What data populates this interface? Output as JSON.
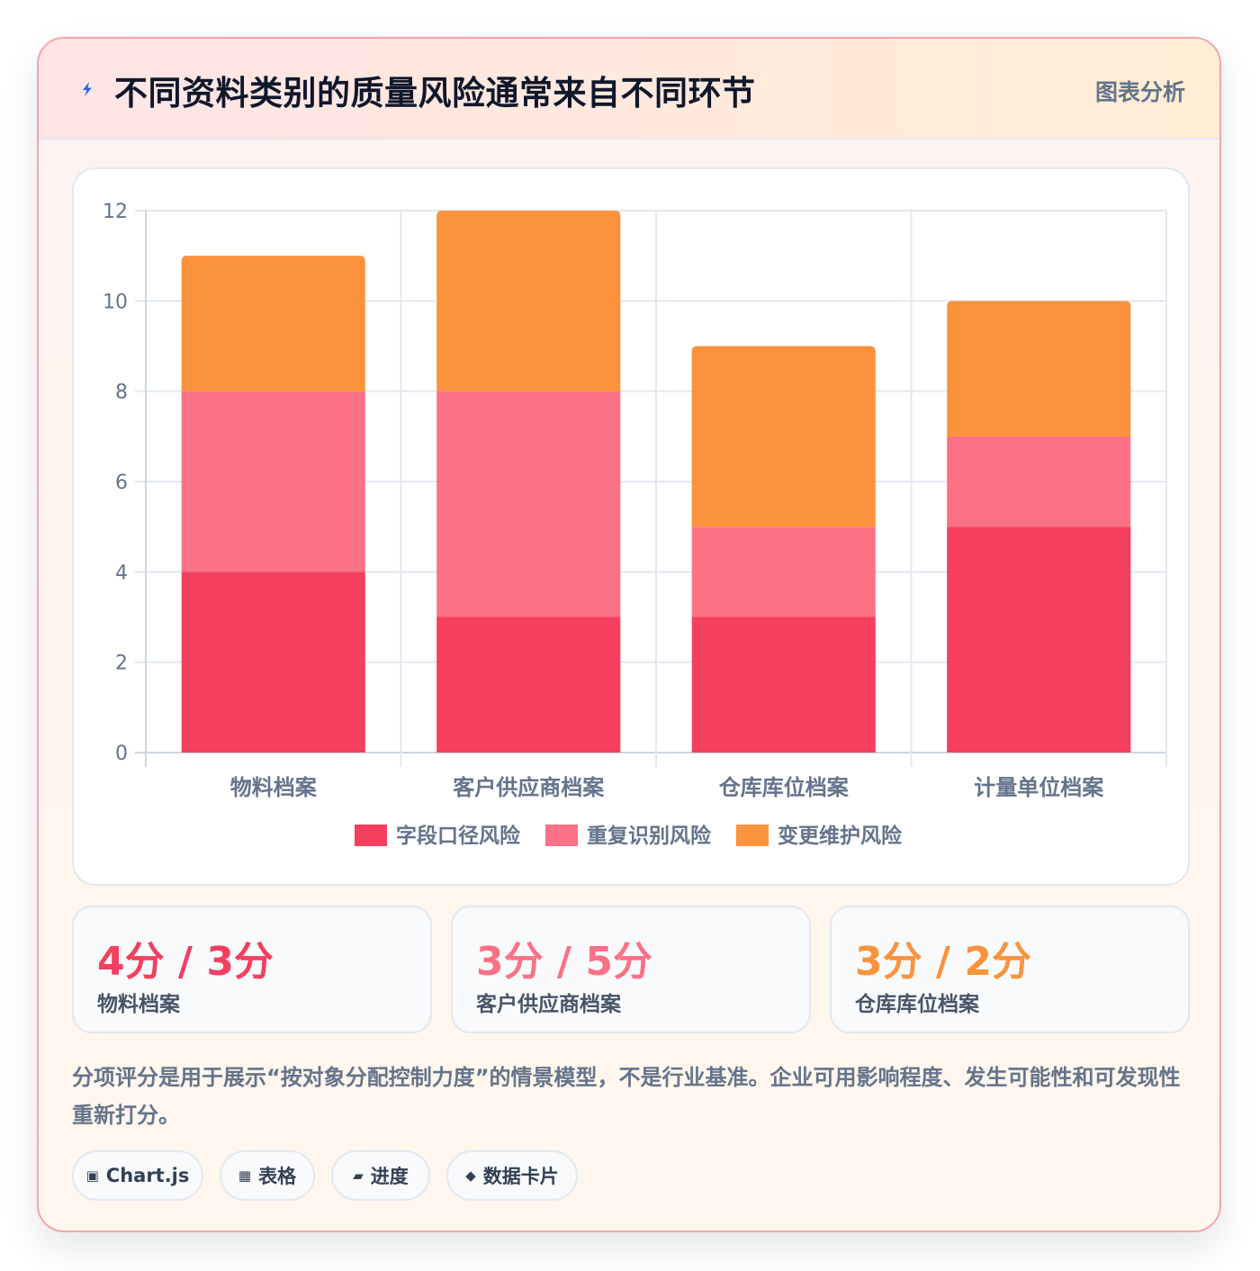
{
  "header": {
    "icon": "lightning-icon",
    "title": "不同资料类别的质量风险通常来自不同环节",
    "tag": "图表分析"
  },
  "colors": {
    "series1": "#f43f5e",
    "series2": "#fb7185",
    "series3": "#fb923c",
    "accent_blue": "#2563eb"
  },
  "chart_data": {
    "type": "bar",
    "stacked": true,
    "title": "",
    "xlabel": "",
    "ylabel": "",
    "categories": [
      "物料档案",
      "客户供应商档案",
      "仓库库位档案",
      "计量单位档案"
    ],
    "series": [
      {
        "name": "字段口径风险",
        "values": [
          4,
          3,
          3,
          5
        ],
        "color": "#f43f5e"
      },
      {
        "name": "重复识别风险",
        "values": [
          4,
          5,
          2,
          2
        ],
        "color": "#fb7185"
      },
      {
        "name": "变更维护风险",
        "values": [
          3,
          4,
          4,
          3
        ],
        "color": "#fb923c"
      }
    ],
    "ylim": [
      0,
      12
    ],
    "yticks": [
      0,
      2,
      4,
      6,
      8,
      10,
      12
    ],
    "grid": true,
    "legend": "bottom"
  },
  "stats": [
    {
      "value": "4分 / 3分",
      "label": "物料档案",
      "color": "#f43f5e"
    },
    {
      "value": "3分 / 5分",
      "label": "客户供应商档案",
      "color": "#fb7185"
    },
    {
      "value": "3分 / 2分",
      "label": "仓库库位档案",
      "color": "#fb923c"
    }
  ],
  "note": "分项评分是用于展示“按对象分配控制力度”的情景模型，不是行业基准。企业可用影响程度、发生可能性和可发现性重新打分。",
  "chips": [
    {
      "icon": "▣",
      "label": "Chart.js"
    },
    {
      "icon": "▦",
      "label": "表格"
    },
    {
      "icon": "▰",
      "label": "进度"
    },
    {
      "icon": "◆",
      "label": "数据卡片"
    }
  ]
}
